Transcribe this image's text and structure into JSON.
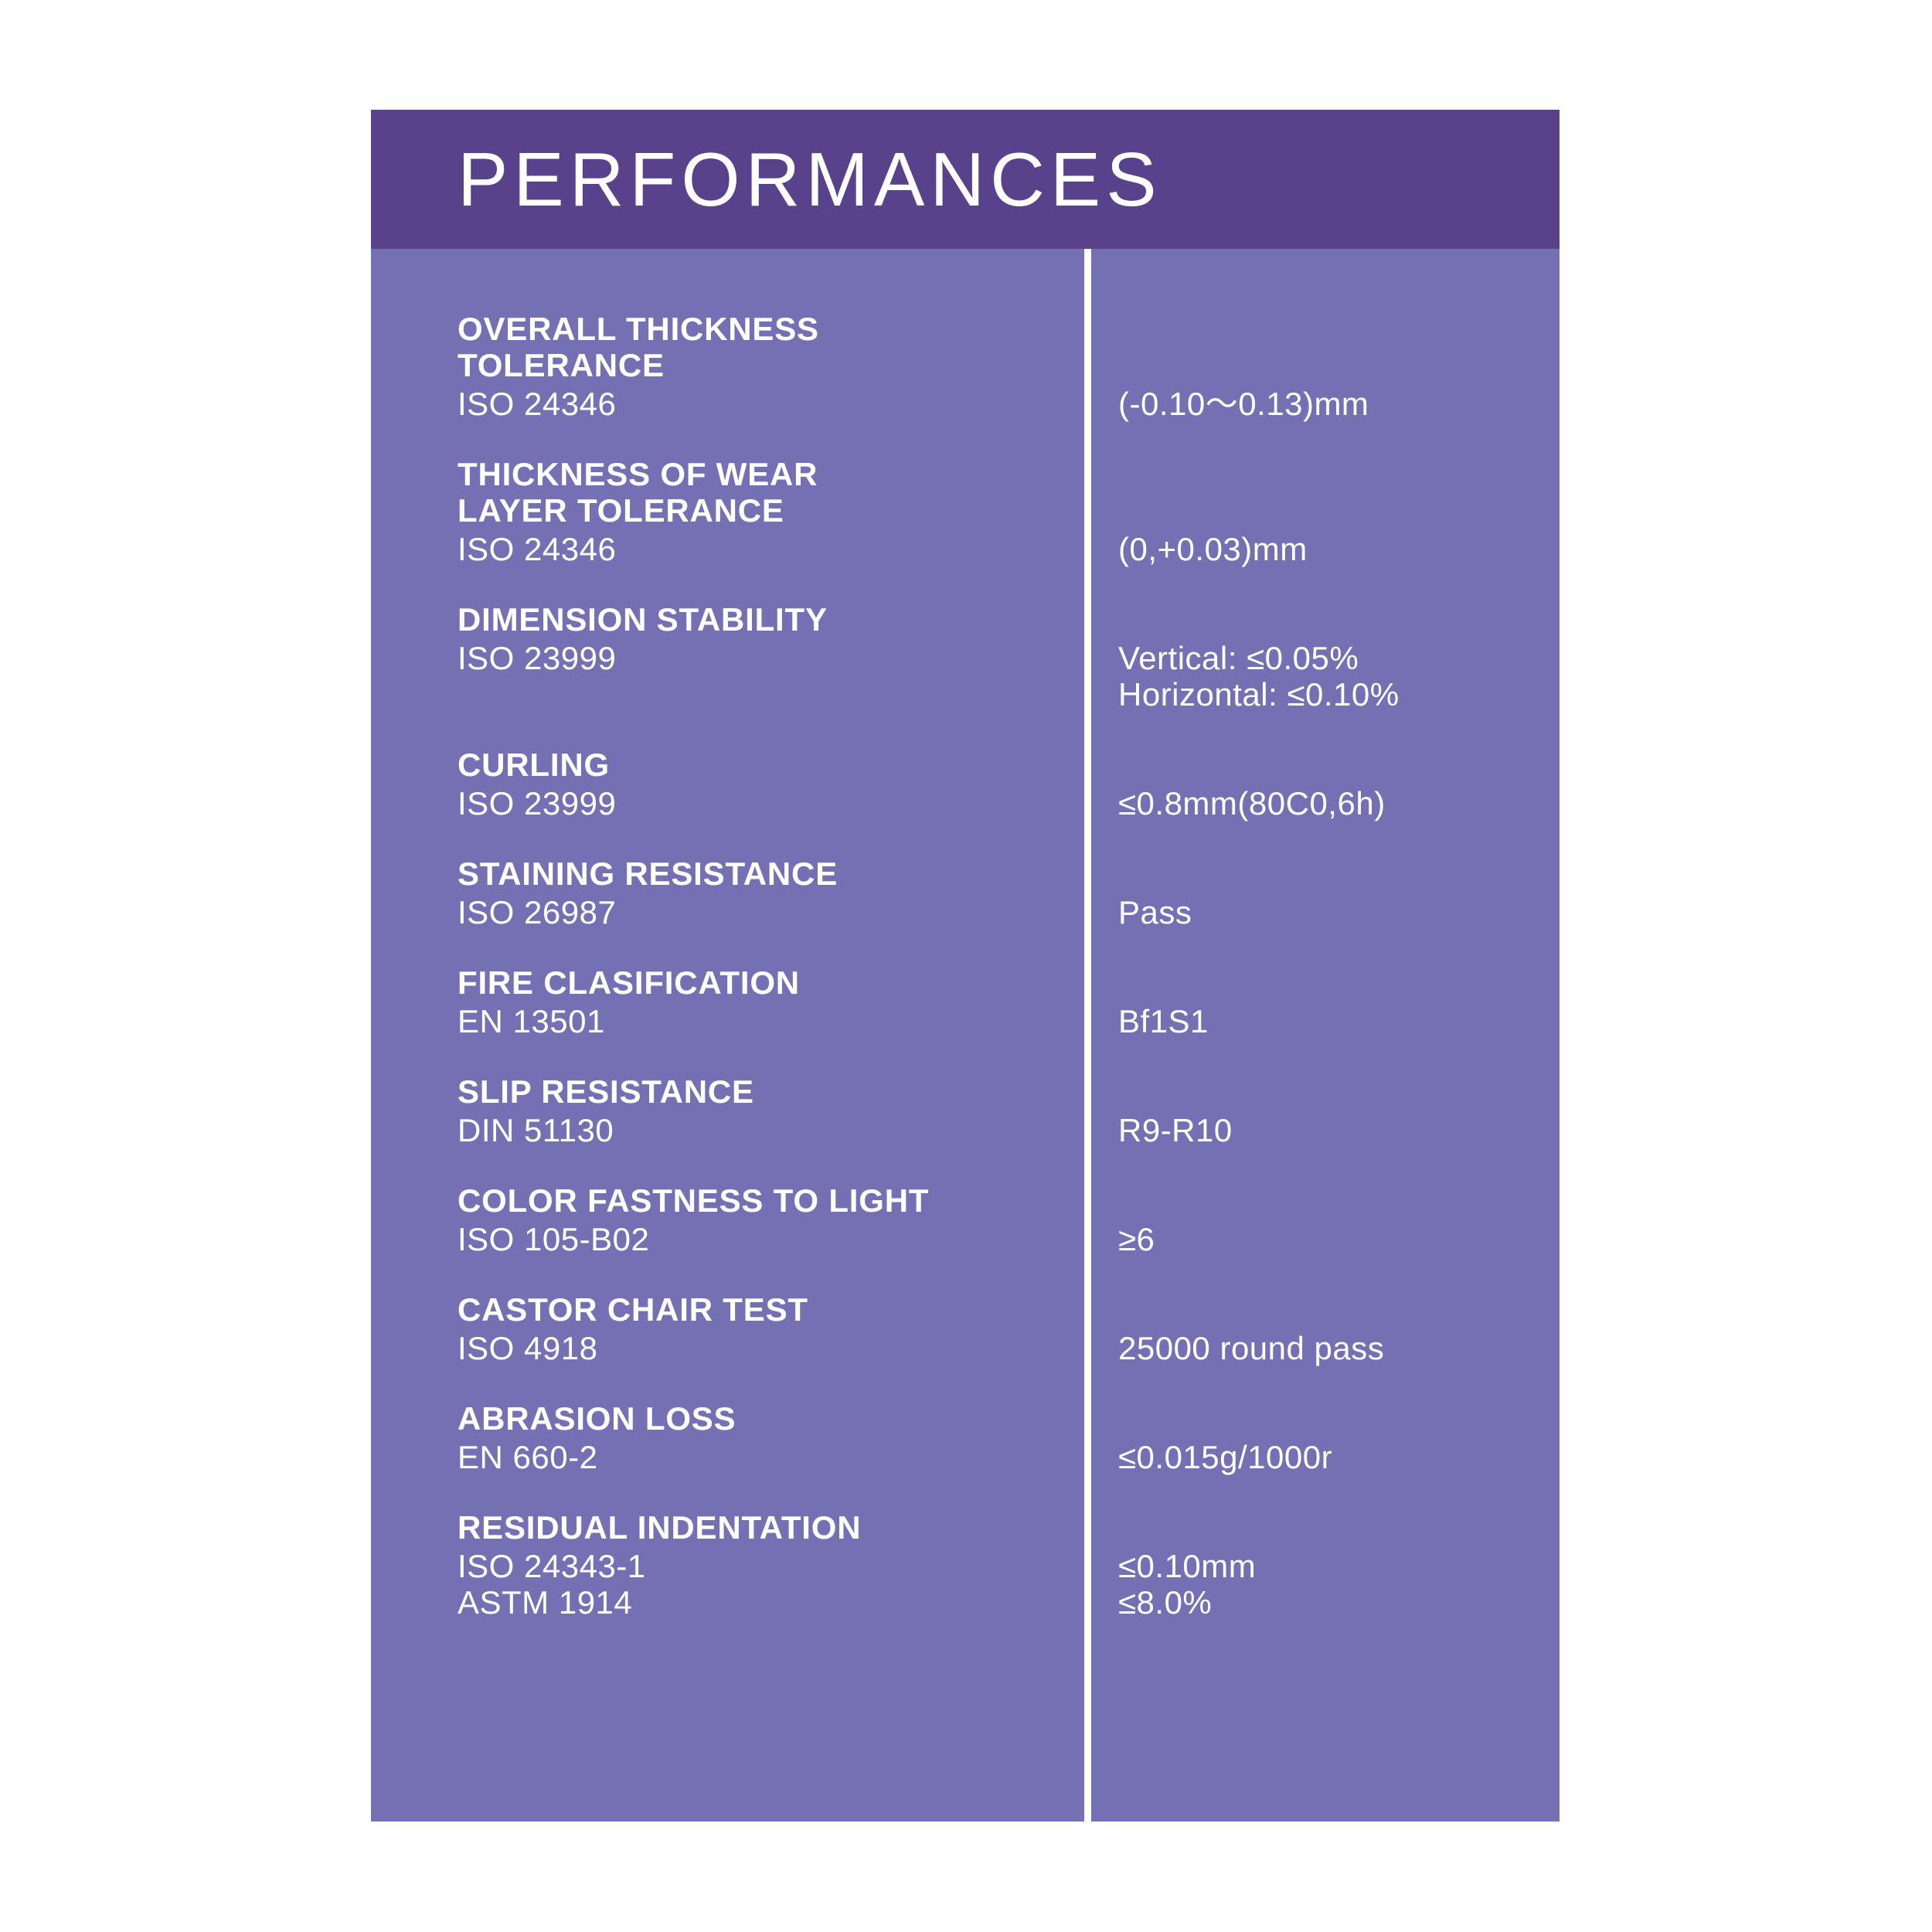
{
  "header": {
    "title": "PERFORMANCES"
  },
  "colors": {
    "header_bg": "#57428b",
    "body_bg": "#7570b3",
    "divider": "#ffffff",
    "text": "#ffffff",
    "page_bg": "#ffffff"
  },
  "rows": [
    {
      "title_lines": [
        "OVERALL THICKNESS",
        "TOLERANCE"
      ],
      "codes": [
        "ISO 24346"
      ],
      "values": [
        "(-0.10～0.13)mm"
      ]
    },
    {
      "title_lines": [
        "THICKNESS OF WEAR",
        "LAYER TOLERANCE"
      ],
      "codes": [
        "ISO 24346"
      ],
      "values": [
        "(0,+0.03)mm"
      ]
    },
    {
      "title_lines": [
        "DIMENSION STABILITY"
      ],
      "codes": [
        "ISO 23999"
      ],
      "values": [
        "Vertical: ≤0.05%",
        "Horizontal: ≤0.10%"
      ]
    },
    {
      "title_lines": [
        "CURLING"
      ],
      "codes": [
        "ISO 23999"
      ],
      "values": [
        "≤0.8mm(80C0,6h)"
      ]
    },
    {
      "title_lines": [
        "STAINING RESISTANCE"
      ],
      "codes": [
        "ISO 26987"
      ],
      "values": [
        "Pass"
      ]
    },
    {
      "title_lines": [
        "FIRE CLASIFICATION"
      ],
      "codes": [
        "EN 13501"
      ],
      "values": [
        "Bf1S1"
      ]
    },
    {
      "title_lines": [
        "SLIP RESISTANCE"
      ],
      "codes": [
        "DIN 51130"
      ],
      "values": [
        "R9-R10"
      ]
    },
    {
      "title_lines": [
        "COLOR FASTNESS TO LIGHT"
      ],
      "codes": [
        "ISO 105-B02"
      ],
      "values": [
        "≥6"
      ]
    },
    {
      "title_lines": [
        "CASTOR CHAIR TEST"
      ],
      "codes": [
        "ISO 4918"
      ],
      "values": [
        "25000 round pass"
      ]
    },
    {
      "title_lines": [
        "ABRASION LOSS"
      ],
      "codes": [
        "EN 660-2"
      ],
      "values": [
        "≤0.015g/1000r"
      ]
    },
    {
      "title_lines": [
        "RESIDUAL INDENTATION"
      ],
      "codes": [
        "ISO 24343-1",
        "ASTM 1914"
      ],
      "values": [
        "≤0.10mm",
        "≤8.0%"
      ]
    }
  ]
}
